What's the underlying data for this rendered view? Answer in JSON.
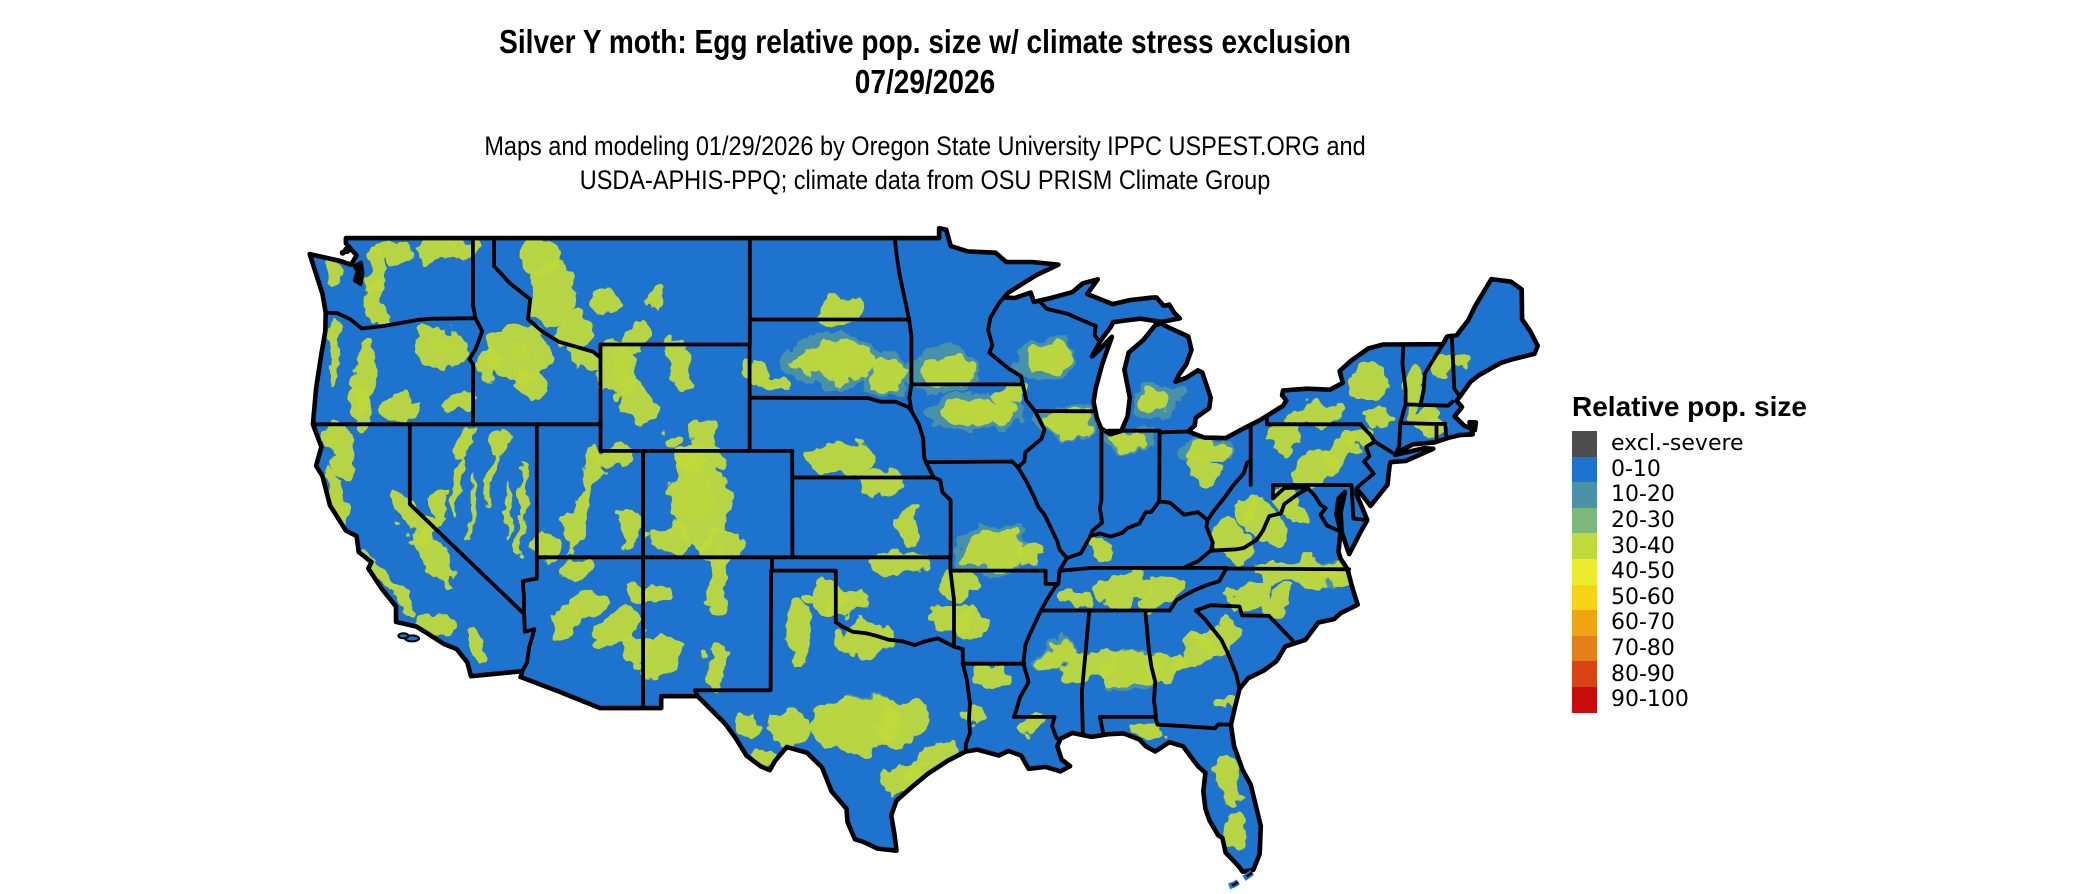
{
  "title": {
    "line1": "Silver Y moth: Egg relative pop. size w/ climate stress exclusion",
    "line2": "07/29/2026"
  },
  "subtitle": {
    "line1": "Maps and modeling 01/29/2026 by Oregon State University IPPC USPEST.ORG and",
    "line2": "USDA-APHIS-PPQ; climate data from OSU PRISM Climate Group"
  },
  "legend": {
    "title": "Relative pop. size",
    "items": [
      {
        "label": "excl.-severe",
        "color": "#4d4d4d"
      },
      {
        "label": "0-10",
        "color": "#1d73cd"
      },
      {
        "label": "10-20",
        "color": "#4b92a8"
      },
      {
        "label": "20-30",
        "color": "#7cb87b"
      },
      {
        "label": "30-40",
        "color": "#c0d93b"
      },
      {
        "label": "40-50",
        "color": "#ecec2d"
      },
      {
        "label": "50-60",
        "color": "#f6d415"
      },
      {
        "label": "60-70",
        "color": "#eda612"
      },
      {
        "label": "70-80",
        "color": "#e57f1b"
      },
      {
        "label": "80-90",
        "color": "#d94413"
      },
      {
        "label": "90-100",
        "color": "#c80c0c"
      }
    ]
  },
  "map": {
    "region": "Contiguous United States",
    "base_color": "#1d73cd",
    "border_color": "#000000",
    "water_color": "#ffffff",
    "background_color": "#ffffff"
  }
}
